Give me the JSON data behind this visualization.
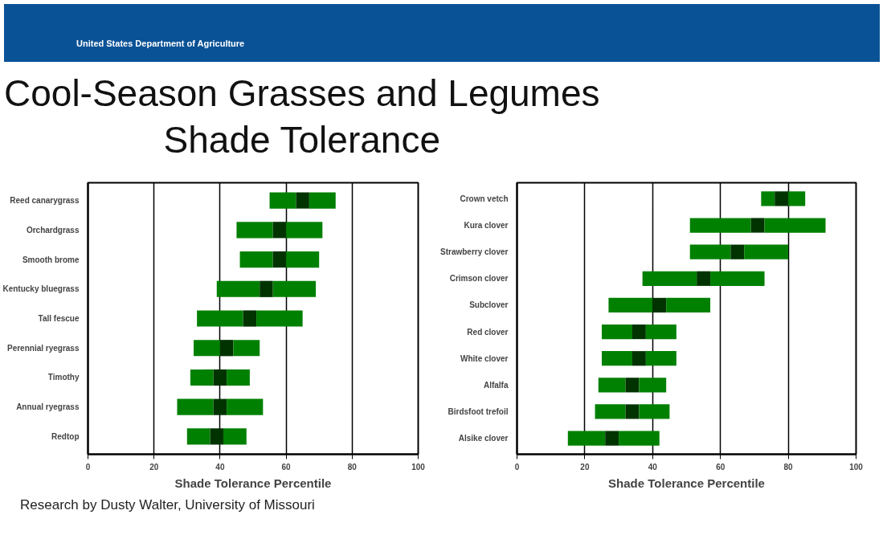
{
  "chart_data": [
    {
      "type": "bar",
      "orientation": "horizontal",
      "title": "Cool-Season Grasses and Legumes\nShade Tolerance",
      "xlabel": "Shade Tolerance Percentile",
      "categories": [
        "Reed canarygrass",
        "Orchardgrass",
        "Smooth brome",
        "Kentucky bluegrass",
        "Tall fescue",
        "Perennial ryegrass",
        "Timothy",
        "Annual ryegrass",
        "Redtop"
      ],
      "series": [
        {
          "color": "#008000",
          "base": [
            55,
            45,
            46,
            39,
            33,
            32,
            31,
            27,
            30
          ],
          "values": [
            8,
            11,
            10,
            13,
            14,
            8,
            7,
            11,
            7
          ]
        },
        {
          "color": "#003300",
          "base": [
            63,
            56,
            56,
            52,
            47,
            40,
            38,
            38,
            37
          ],
          "values": [
            4,
            4,
            4,
            4,
            4,
            4,
            4,
            4,
            4
          ]
        },
        {
          "color": "#008000",
          "base": [
            67,
            60,
            60,
            56,
            51,
            44,
            42,
            42,
            41
          ],
          "values": [
            8,
            11,
            10,
            13,
            14,
            8,
            7,
            11,
            7
          ]
        }
      ],
      "xlim": [
        0,
        100
      ],
      "xticks": [
        0,
        20,
        40,
        60,
        80,
        100
      ],
      "grid": "x",
      "annotations": [
        "United States Department of Agriculture",
        "Research by Dusty Walter, University of Missouri"
      ]
    },
    {
      "type": "bar",
      "orientation": "horizontal",
      "xlabel": "Shade Tolerance Percentile",
      "categories": [
        "Crown vetch",
        "Kura clover",
        "Strawberry clover",
        "Crimson clover",
        "Subclover",
        "Red clover",
        "White clover",
        "Alfalfa",
        "Birdsfoot trefoil",
        "Alsike clover"
      ],
      "series": [
        {
          "color": "#008000",
          "base": [
            72,
            51,
            51,
            37,
            27,
            25,
            25,
            24,
            23,
            15
          ],
          "values": [
            4,
            18,
            12,
            16,
            13,
            9,
            9,
            8,
            9,
            11
          ]
        },
        {
          "color": "#003300",
          "base": [
            76,
            69,
            63,
            53,
            40,
            34,
            34,
            32,
            32,
            26
          ],
          "values": [
            4,
            4,
            4,
            4,
            4,
            4,
            4,
            4,
            4,
            4
          ]
        },
        {
          "color": "#008000",
          "base": [
            80,
            73,
            67,
            57,
            44,
            38,
            38,
            36,
            36,
            30
          ],
          "values": [
            5,
            18,
            13,
            16,
            13,
            9,
            9,
            8,
            9,
            12
          ]
        }
      ],
      "xlim": [
        0,
        100
      ],
      "xticks": [
        0,
        20,
        40,
        60,
        80,
        100
      ],
      "grid": "x"
    }
  ]
}
